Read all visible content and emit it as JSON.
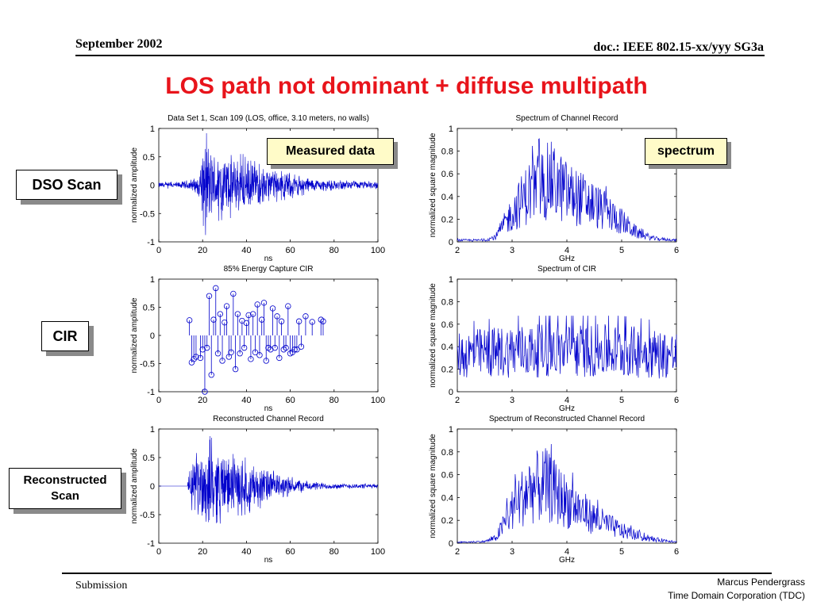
{
  "header": {
    "left": "September 2002",
    "right": "doc.: IEEE 802.15-xx/yyy SG3a"
  },
  "title": "LOS path not dominant + diffuse multipath",
  "side_labels": {
    "dso": "DSO Scan",
    "cir": "CIR",
    "recon_line1": "Reconstructed",
    "recon_line2": "Scan"
  },
  "callouts": {
    "measured": "Measured data",
    "spectrum": "spectrum"
  },
  "footer": {
    "left": "Submission",
    "right_line1": "Marcus Pendergrass",
    "right_line2": "Time Domain Corporation (TDC)"
  },
  "colors": {
    "title": "#e8141b",
    "trace": "#0000cc",
    "callout_bg": "#fffbc8"
  },
  "chart_data": [
    {
      "type": "line",
      "title": "Data Set 1, Scan 109 (LOS, office, 3.10 meters, no walls)",
      "xlabel": "ns",
      "ylabel": "normalized amplitude",
      "xlim": [
        0,
        100
      ],
      "ylim": [
        -1,
        1
      ],
      "xticks": [
        0,
        20,
        40,
        60,
        80,
        100
      ],
      "yticks": [
        1,
        0.5,
        0,
        -0.5,
        -1
      ],
      "xtick_labels": [
        "0",
        "20",
        "40",
        "60",
        "80",
        "100"
      ],
      "ytick_labels": [
        "1",
        "0.5",
        "0",
        "-0.5",
        "-1"
      ],
      "envelope": [
        [
          0,
          0.05
        ],
        [
          10,
          0.06
        ],
        [
          18,
          0.15
        ],
        [
          20,
          0.7
        ],
        [
          22,
          0.85
        ],
        [
          24,
          0.6
        ],
        [
          30,
          0.55
        ],
        [
          36,
          0.5
        ],
        [
          40,
          0.5
        ],
        [
          45,
          0.35
        ],
        [
          50,
          0.3
        ],
        [
          60,
          0.22
        ],
        [
          70,
          0.12
        ],
        [
          80,
          0.08
        ],
        [
          100,
          0.06
        ]
      ]
    },
    {
      "type": "line",
      "title": "Spectrum of Channel Record",
      "xlabel": "GHz",
      "ylabel": "normalized square magnitude",
      "xlim": [
        2,
        6
      ],
      "ylim": [
        0,
        1
      ],
      "xticks": [
        2,
        3,
        4,
        5,
        6
      ],
      "yticks": [
        1,
        0.8,
        0.6,
        0.4,
        0.2,
        0
      ],
      "xtick_labels": [
        "2",
        "3",
        "4",
        "5",
        "6"
      ],
      "ytick_labels": [
        "1",
        "0.8",
        "0.6",
        "0.4",
        "0.2",
        "0"
      ],
      "envelope": [
        [
          2,
          0.02
        ],
        [
          2.5,
          0.02
        ],
        [
          2.7,
          0.06
        ],
        [
          3,
          0.35
        ],
        [
          3.3,
          0.6
        ],
        [
          3.7,
          0.75
        ],
        [
          4,
          0.6
        ],
        [
          4.5,
          0.45
        ],
        [
          5,
          0.25
        ],
        [
          5.3,
          0.1
        ],
        [
          5.6,
          0.04
        ],
        [
          6,
          0.02
        ]
      ]
    },
    {
      "type": "stem",
      "title": "85% Energy Capture CIR",
      "xlabel": "ns",
      "ylabel": "normalized amplitude",
      "xlim": [
        0,
        100
      ],
      "ylim": [
        -1,
        1
      ],
      "xticks": [
        0,
        20,
        40,
        60,
        80,
        100
      ],
      "yticks": [
        1,
        0.5,
        0,
        -0.5,
        -1
      ],
      "xtick_labels": [
        "0",
        "20",
        "40",
        "60",
        "80",
        "100"
      ],
      "ytick_labels": [
        "1",
        "0.5",
        "0",
        "-0.5",
        "-1"
      ],
      "x": [
        14,
        15,
        16,
        17,
        19,
        20,
        21,
        22,
        23,
        24,
        25,
        26,
        27,
        28,
        29,
        30,
        31,
        32,
        33,
        34,
        35,
        36,
        37,
        38,
        39,
        40,
        41,
        42,
        43,
        44,
        45,
        46,
        47,
        48,
        49,
        50,
        51,
        52,
        53,
        54,
        55,
        56,
        57,
        58,
        59,
        60,
        61,
        62,
        63,
        64,
        65,
        67,
        70,
        74,
        75
      ],
      "y": [
        0.27,
        -0.48,
        -0.42,
        -0.38,
        -0.4,
        -0.25,
        -1.0,
        -0.22,
        0.7,
        -0.7,
        0.28,
        0.84,
        -0.32,
        0.38,
        -0.45,
        0.23,
        0.52,
        -0.38,
        -0.3,
        0.74,
        -0.6,
        0.38,
        -0.32,
        0.26,
        -0.22,
        0.22,
        0.36,
        -0.42,
        0.38,
        -0.3,
        0.55,
        -0.35,
        0.28,
        0.58,
        -0.45,
        -0.22,
        -0.25,
        0.48,
        -0.22,
        0.34,
        -0.4,
        0.25,
        -0.25,
        -0.22,
        0.52,
        -0.32,
        -0.3,
        -0.25,
        -0.25,
        0.25,
        -0.2,
        0.34,
        0.24,
        0.28,
        0.25
      ]
    },
    {
      "type": "line",
      "title": "Spectrum of CIR",
      "xlabel": "GHz",
      "ylabel": "normalized square magnitude",
      "xlim": [
        2,
        6
      ],
      "ylim": [
        0,
        1
      ],
      "xticks": [
        2,
        3,
        4,
        5,
        6
      ],
      "yticks": [
        1,
        0.8,
        0.6,
        0.4,
        0.2,
        0
      ],
      "xtick_labels": [
        "2",
        "3",
        "4",
        "5",
        "6"
      ],
      "ytick_labels": [
        "1",
        "0.8",
        "0.6",
        "0.4",
        "0.2",
        "0"
      ],
      "envelope": [
        [
          2,
          0.45
        ],
        [
          3,
          0.5
        ],
        [
          4,
          0.5
        ],
        [
          5,
          0.5
        ],
        [
          6,
          0.45
        ]
      ]
    },
    {
      "type": "line",
      "title": "Reconstructed Channel Record",
      "xlabel": "ns",
      "ylabel": "normalized amplitude",
      "xlim": [
        0,
        100
      ],
      "ylim": [
        -1,
        1
      ],
      "xticks": [
        0,
        20,
        40,
        60,
        80,
        100
      ],
      "yticks": [
        1,
        0.5,
        0,
        -0.5,
        -1
      ],
      "xtick_labels": [
        "0",
        "20",
        "40",
        "60",
        "80",
        "100"
      ],
      "ytick_labels": [
        "1",
        "0.5",
        "0",
        "-0.5",
        "-1"
      ],
      "envelope": [
        [
          0,
          0
        ],
        [
          13,
          0
        ],
        [
          14,
          0.3
        ],
        [
          16,
          0.45
        ],
        [
          20,
          0.7
        ],
        [
          22,
          0.85
        ],
        [
          26,
          0.7
        ],
        [
          30,
          0.55
        ],
        [
          40,
          0.45
        ],
        [
          50,
          0.3
        ],
        [
          60,
          0.15
        ],
        [
          70,
          0.08
        ],
        [
          80,
          0.05
        ],
        [
          100,
          0.04
        ]
      ]
    },
    {
      "type": "line",
      "title": "Spectrum of Reconstructed Channel Record",
      "xlabel": "GHz",
      "ylabel": "normalized square magnitude",
      "xlim": [
        2,
        6
      ],
      "ylim": [
        0,
        1
      ],
      "xticks": [
        2,
        3,
        4,
        5,
        6
      ],
      "yticks": [
        1,
        0.8,
        0.6,
        0.4,
        0.2,
        0
      ],
      "xtick_labels": [
        "2",
        "3",
        "4",
        "5",
        "6"
      ],
      "ytick_labels": [
        "1",
        "0.8",
        "0.6",
        "0.4",
        "0.2",
        "0"
      ],
      "envelope": [
        [
          2,
          0.01
        ],
        [
          2.5,
          0.02
        ],
        [
          2.7,
          0.06
        ],
        [
          3,
          0.4
        ],
        [
          3.3,
          0.65
        ],
        [
          3.6,
          0.7
        ],
        [
          4,
          0.5
        ],
        [
          4.5,
          0.3
        ],
        [
          5,
          0.15
        ],
        [
          5.5,
          0.05
        ],
        [
          6,
          0.02
        ]
      ]
    }
  ]
}
